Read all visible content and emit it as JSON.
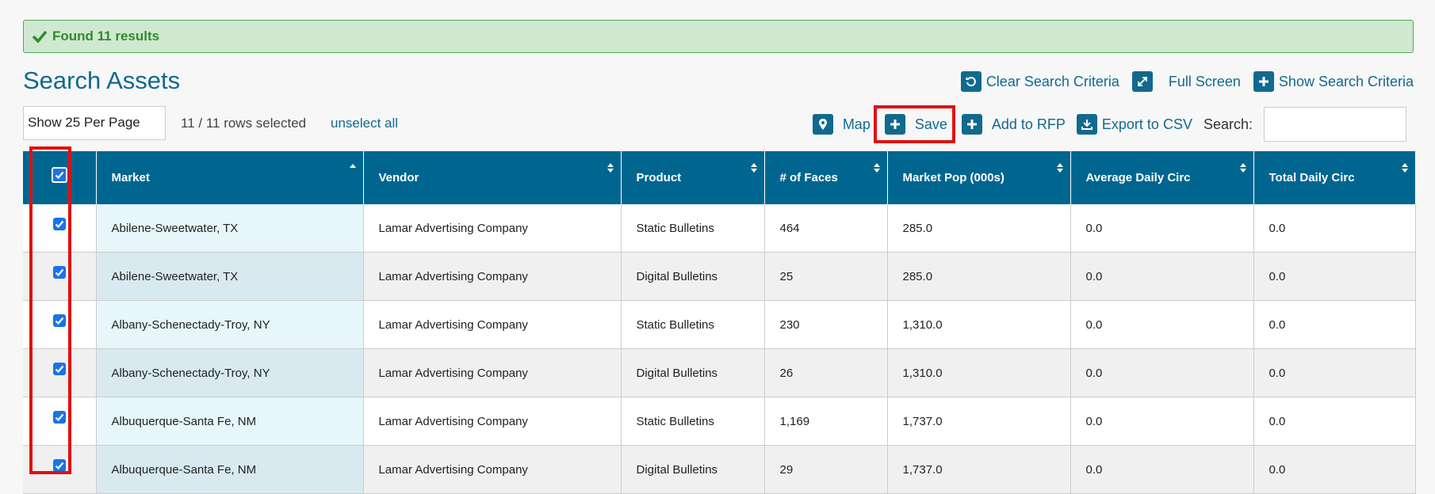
{
  "alert": {
    "message": "Found 11 results"
  },
  "page_title": "Search Assets",
  "top_actions": {
    "clear": "Clear Search Criteria",
    "fullscreen": "Full Screen",
    "show_criteria": "Show Search Criteria"
  },
  "controls": {
    "per_page": "Show 25 Per Page",
    "rows_selected": "11 / 11 rows selected",
    "unselect_all": "unselect all",
    "map": "Map",
    "save": "Save",
    "add_rfp": "Add to RFP",
    "export_csv": "Export to CSV",
    "search_label": "Search:",
    "search_value": ""
  },
  "table": {
    "columns": [
      "Market",
      "Vendor",
      "Product",
      "# of Faces",
      "Market Pop (000s)",
      "Average Daily Circ",
      "Total Daily Circ"
    ],
    "rows": [
      [
        "Abilene-Sweetwater, TX",
        "Lamar Advertising Company",
        "Static Bulletins",
        "464",
        "285.0",
        "0.0",
        "0.0"
      ],
      [
        "Abilene-Sweetwater, TX",
        "Lamar Advertising Company",
        "Digital Bulletins",
        "25",
        "285.0",
        "0.0",
        "0.0"
      ],
      [
        "Albany-Schenectady-Troy, NY",
        "Lamar Advertising Company",
        "Static Bulletins",
        "230",
        "1,310.0",
        "0.0",
        "0.0"
      ],
      [
        "Albany-Schenectady-Troy, NY",
        "Lamar Advertising Company",
        "Digital Bulletins",
        "26",
        "1,310.0",
        "0.0",
        "0.0"
      ],
      [
        "Albuquerque-Santa Fe, NM",
        "Lamar Advertising Company",
        "Static Bulletins",
        "1,169",
        "1,737.0",
        "0.0",
        "0.0"
      ],
      [
        "Albuquerque-Santa Fe, NM",
        "Lamar Advertising Company",
        "Digital Bulletins",
        "29",
        "1,737.0",
        "0.0",
        "0.0"
      ]
    ]
  },
  "colors": {
    "accent": "#11698e",
    "header": "#00668f",
    "highlight": "#e01010",
    "success": "#2e8b2e"
  }
}
